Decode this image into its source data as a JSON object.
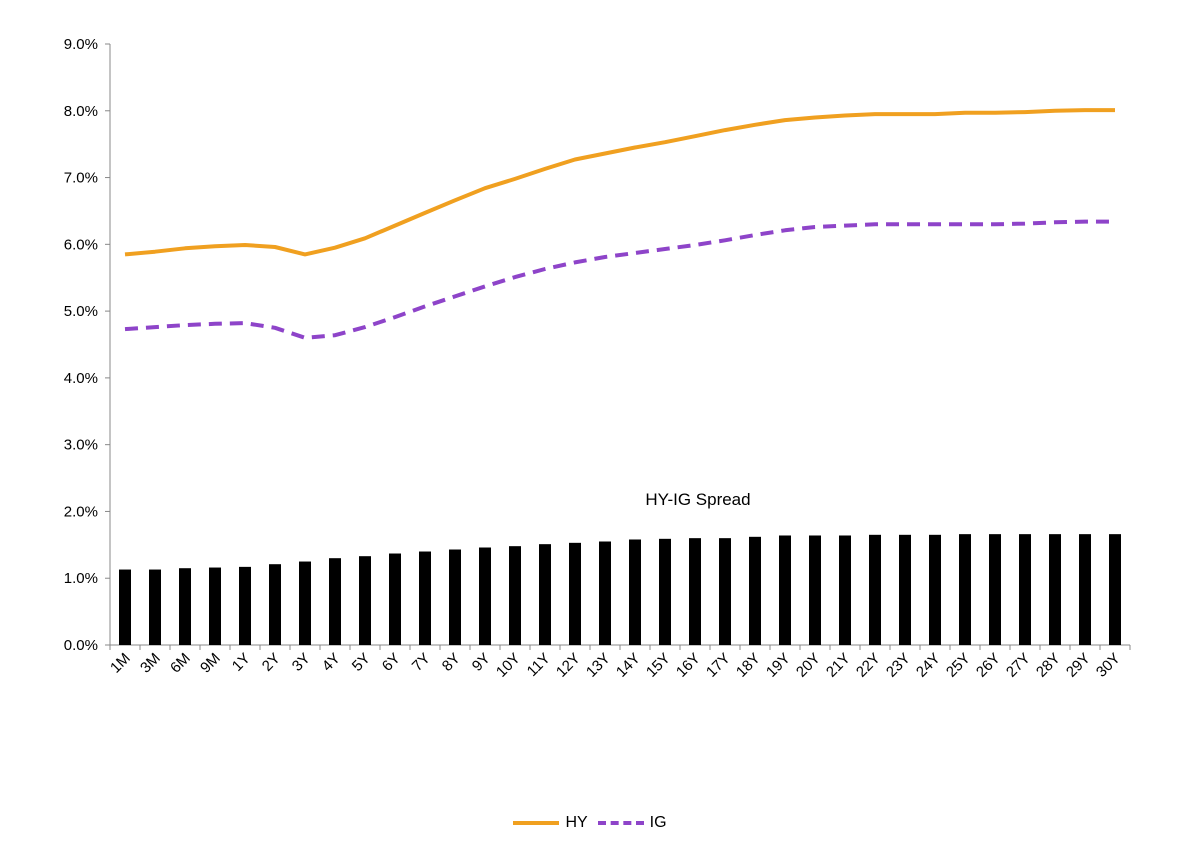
{
  "chart_data": {
    "type": "line",
    "categories": [
      "1M",
      "3M",
      "6M",
      "9M",
      "1Y",
      "2Y",
      "3Y",
      "4Y",
      "5Y",
      "6Y",
      "7Y",
      "8Y",
      "9Y",
      "10Y",
      "11Y",
      "12Y",
      "13Y",
      "14Y",
      "15Y",
      "16Y",
      "17Y",
      "18Y",
      "19Y",
      "20Y",
      "21Y",
      "22Y",
      "23Y",
      "24Y",
      "25Y",
      "26Y",
      "27Y",
      "28Y",
      "29Y",
      "30Y"
    ],
    "series": [
      {
        "name": "HY",
        "kind": "line",
        "style": "solid",
        "color": "#F0A020",
        "values": [
          5.85,
          5.89,
          5.94,
          5.97,
          5.99,
          5.96,
          5.85,
          5.95,
          6.09,
          6.28,
          6.47,
          6.66,
          6.84,
          6.98,
          7.13,
          7.27,
          7.36,
          7.45,
          7.53,
          7.62,
          7.71,
          7.79,
          7.86,
          7.9,
          7.93,
          7.95,
          7.95,
          7.95,
          7.97,
          7.97,
          7.98,
          8.0,
          8.01,
          8.01
        ]
      },
      {
        "name": "IG",
        "kind": "line",
        "style": "dashed",
        "color": "#8E44C9",
        "values": [
          4.73,
          4.76,
          4.79,
          4.81,
          4.82,
          4.75,
          4.6,
          4.64,
          4.76,
          4.91,
          5.07,
          5.22,
          5.37,
          5.51,
          5.63,
          5.73,
          5.81,
          5.87,
          5.93,
          5.99,
          6.06,
          6.14,
          6.21,
          6.26,
          6.28,
          6.3,
          6.3,
          6.3,
          6.3,
          6.3,
          6.31,
          6.33,
          6.34,
          6.34
        ]
      },
      {
        "name": "HY-IG Spread",
        "kind": "bar",
        "color": "#000000",
        "values": [
          1.13,
          1.13,
          1.15,
          1.16,
          1.17,
          1.21,
          1.25,
          1.3,
          1.33,
          1.37,
          1.4,
          1.43,
          1.46,
          1.48,
          1.51,
          1.53,
          1.55,
          1.58,
          1.59,
          1.6,
          1.6,
          1.62,
          1.64,
          1.64,
          1.64,
          1.65,
          1.65,
          1.65,
          1.66,
          1.66,
          1.66,
          1.66,
          1.66,
          1.66
        ]
      }
    ],
    "annotation": "HY-IG Spread",
    "ylim": [
      0,
      9
    ],
    "yticks": [
      "0.0%",
      "1.0%",
      "2.0%",
      "3.0%",
      "4.0%",
      "5.0%",
      "6.0%",
      "7.0%",
      "8.0%",
      "9.0%"
    ],
    "grid": false,
    "legend_position": "bottom"
  }
}
